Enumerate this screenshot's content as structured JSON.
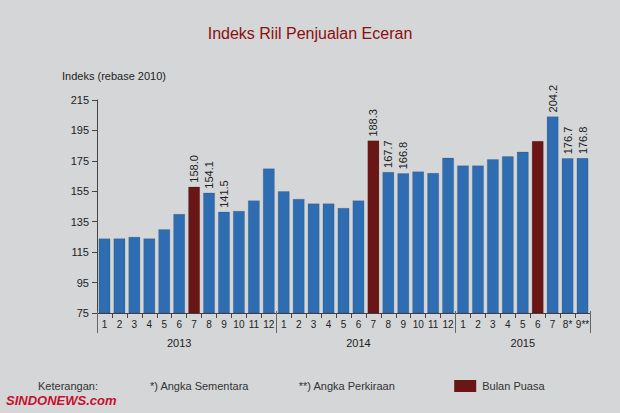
{
  "chart_data": {
    "type": "bar",
    "title": "Indeks Riil Penjualan Eceran",
    "y_label": "Indeks (rebase 2010)",
    "categories": [
      "1",
      "2",
      "3",
      "4",
      "5",
      "6",
      "7",
      "8",
      "9",
      "10",
      "11",
      "12",
      "1",
      "2",
      "3",
      "4",
      "5",
      "6",
      "7",
      "8",
      "9",
      "10",
      "11",
      "12",
      "1",
      "2",
      "3",
      "4",
      "5",
      "6",
      "7",
      "8*",
      "9**"
    ],
    "groups": [
      {
        "label": "2013",
        "size": 12
      },
      {
        "label": "2014",
        "size": 12
      },
      {
        "label": "2015",
        "size": 9
      }
    ],
    "values": [
      124,
      124,
      125,
      124,
      130,
      140,
      158.0,
      154.1,
      141.5,
      142,
      149,
      170,
      155,
      150,
      147,
      147,
      144,
      149,
      188.3,
      167.7,
      166.8,
      168,
      167,
      177,
      172,
      172,
      176,
      178,
      181,
      188,
      204.2,
      176.7,
      176.8
    ],
    "value_labels": [
      null,
      null,
      null,
      null,
      null,
      null,
      "158.0",
      "154.1",
      "141.5",
      null,
      null,
      null,
      null,
      null,
      null,
      null,
      null,
      null,
      "188.3",
      "167.7",
      "166.8",
      null,
      null,
      null,
      null,
      null,
      null,
      null,
      null,
      null,
      "204.2",
      "176.7",
      "176.8"
    ],
    "color": "#2f6db3",
    "colors": [
      "#2f6db3",
      "#2f6db3",
      "#2f6db3",
      "#2f6db3",
      "#2f6db3",
      "#2f6db3",
      "#6b1616",
      "#2f6db3",
      "#2f6db3",
      "#2f6db3",
      "#2f6db3",
      "#2f6db3",
      "#2f6db3",
      "#2f6db3",
      "#2f6db3",
      "#2f6db3",
      "#2f6db3",
      "#2f6db3",
      "#6b1616",
      "#2f6db3",
      "#2f6db3",
      "#2f6db3",
      "#2f6db3",
      "#2f6db3",
      "#2f6db3",
      "#2f6db3",
      "#2f6db3",
      "#2f6db3",
      "#2f6db3",
      "#6b1616",
      "#2f6db3",
      "#2f6db3",
      "#2f6db3"
    ],
    "highlight": {
      "name": "Bulan Puasa",
      "color": "#6b1616"
    },
    "legend_title": "Keterangan:",
    "notes": [
      "*) Angka Sementara",
      "**) Angka Perkiraan"
    ],
    "source": "SINDONEWS.com",
    "ylim": [
      75,
      215
    ],
    "yticks": [
      75,
      95,
      115,
      135,
      155,
      175,
      195,
      215
    ],
    "grid": false,
    "data_labels": true,
    "legend": "bottom"
  }
}
